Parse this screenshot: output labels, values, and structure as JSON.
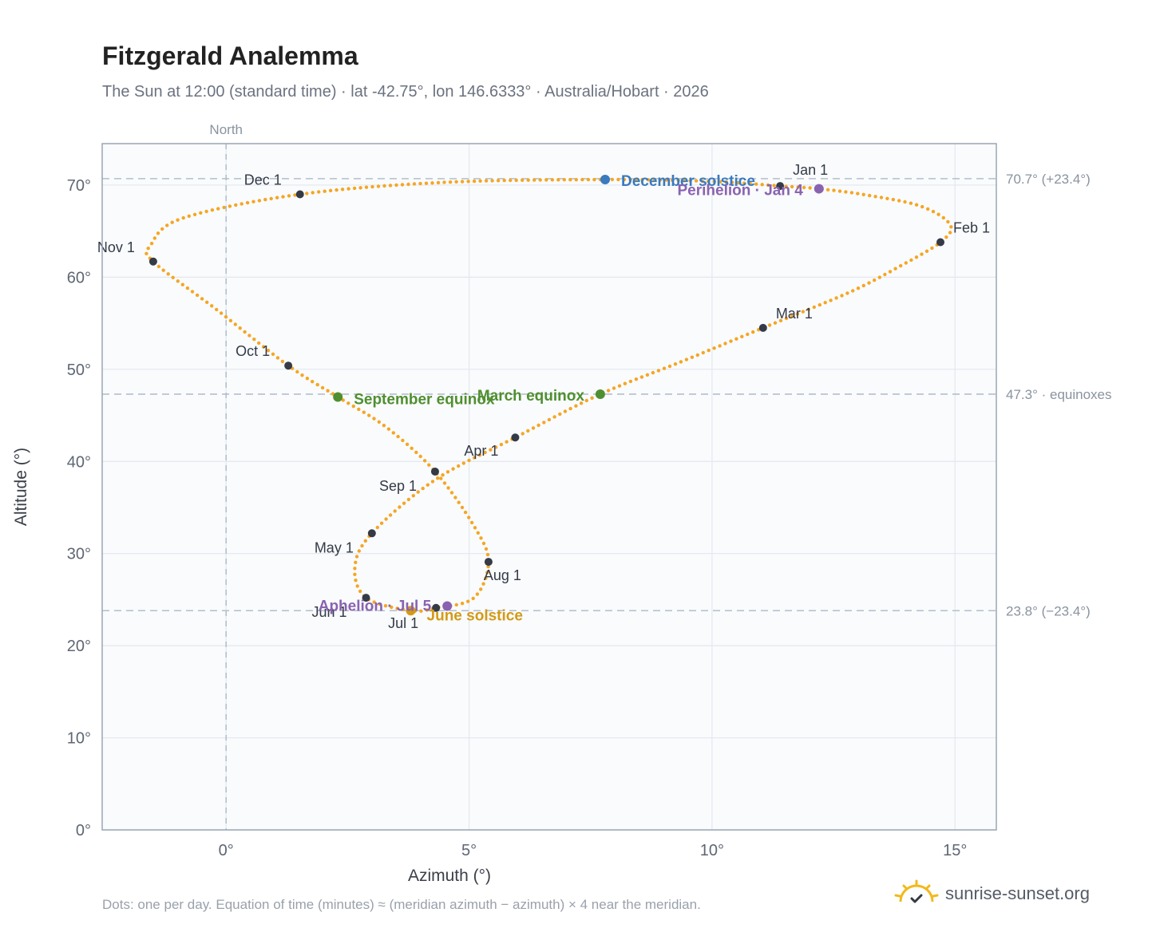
{
  "header": {
    "title": "Fitzgerald Analemma",
    "subtitle": "The Sun at 12:00 (standard time) · lat -42.75°, lon 146.6333° · Australia/Hobart · 2026"
  },
  "footer": {
    "note": "Dots: one per day. Equation of time (minutes) ≈ (meridian azimuth − azimuth) × 4 near the meridian.",
    "brand": "sunrise-sunset.org"
  },
  "colors": {
    "curve": "#f5a623",
    "month_marker": "#343a46",
    "december_solstice": "#3a7abf",
    "june_solstice": "#d49a15",
    "equinox": "#4f8f2f",
    "aphelion_perihelion": "#8a63b0",
    "reference_line": "#b4bfcc",
    "grid": "#e3e8ee",
    "plot_bg": "#f9fbfd",
    "frame": "#9aa6b4"
  },
  "chart_data": {
    "type": "scatter",
    "title": "Fitzgerald Analemma",
    "xlabel": "Azimuth (°)",
    "ylabel": "Altitude (°)",
    "xlim": [
      -2.55,
      15.85
    ],
    "ylim": [
      0,
      74.5
    ],
    "x_ticks": [
      0,
      5,
      10,
      15
    ],
    "x_tick_labels": [
      "0°",
      "5°",
      "10°",
      "15°"
    ],
    "y_ticks": [
      0,
      10,
      20,
      30,
      40,
      50,
      60,
      70
    ],
    "y_tick_labels": [
      "0°",
      "10°",
      "20°",
      "30°",
      "40°",
      "50°",
      "60°",
      "70°"
    ],
    "grid": true,
    "north_line": {
      "x": 0,
      "label": "North"
    },
    "reference_lines": [
      {
        "y": 70.7,
        "label": "70.7° (+23.4°)"
      },
      {
        "y": 47.3,
        "label": "47.3° · equinoxes"
      },
      {
        "y": 23.8,
        "label": "23.8° (−23.4°)"
      }
    ],
    "month_markers": [
      {
        "label": "Jan 1",
        "x": 11.4,
        "y": 69.9
      },
      {
        "label": "Feb 1",
        "x": 14.7,
        "y": 63.8
      },
      {
        "label": "Mar 1",
        "x": 11.05,
        "y": 54.5
      },
      {
        "label": "Apr 1",
        "x": 5.95,
        "y": 42.6
      },
      {
        "label": "May 1",
        "x": 3.0,
        "y": 32.2
      },
      {
        "label": "Jun 1",
        "x": 2.88,
        "y": 25.2
      },
      {
        "label": "Jul 1",
        "x": 4.32,
        "y": 24.1
      },
      {
        "label": "Aug 1",
        "x": 5.4,
        "y": 29.1
      },
      {
        "label": "Sep 1",
        "x": 4.3,
        "y": 38.9
      },
      {
        "label": "Oct 1",
        "x": 1.28,
        "y": 50.4
      },
      {
        "label": "Nov 1",
        "x": -1.5,
        "y": 61.7
      },
      {
        "label": "Dec 1",
        "x": 1.52,
        "y": 69.0
      }
    ],
    "events": [
      {
        "label": "December solstice",
        "x": 7.8,
        "y": 70.6,
        "color_key": "december_solstice"
      },
      {
        "label": "Perihelion · Jan 4",
        "x": 12.2,
        "y": 69.6,
        "color_key": "aphelion_perihelion"
      },
      {
        "label": "March equinox",
        "x": 7.7,
        "y": 47.3,
        "color_key": "equinox"
      },
      {
        "label": "September equinox",
        "x": 2.3,
        "y": 47.0,
        "color_key": "equinox"
      },
      {
        "label": "June solstice",
        "x": 3.8,
        "y": 23.8,
        "color_key": "june_solstice"
      },
      {
        "label": "Aphelion · Jul 5",
        "x": 4.55,
        "y": 24.3,
        "color_key": "aphelion_perihelion"
      }
    ],
    "curve_anchors": [
      {
        "x": 11.4,
        "y": 69.9
      },
      {
        "x": 12.2,
        "y": 69.6
      },
      {
        "x": 13.2,
        "y": 68.9
      },
      {
        "x": 14.3,
        "y": 67.7
      },
      {
        "x": 14.9,
        "y": 65.7
      },
      {
        "x": 14.7,
        "y": 63.8
      },
      {
        "x": 13.8,
        "y": 61.0
      },
      {
        "x": 12.8,
        "y": 58.3
      },
      {
        "x": 11.05,
        "y": 54.5
      },
      {
        "x": 9.4,
        "y": 50.9
      },
      {
        "x": 7.7,
        "y": 47.3
      },
      {
        "x": 5.95,
        "y": 42.6
      },
      {
        "x": 4.3,
        "y": 38.0
      },
      {
        "x": 3.0,
        "y": 32.2
      },
      {
        "x": 2.65,
        "y": 28.5
      },
      {
        "x": 2.88,
        "y": 25.2
      },
      {
        "x": 3.8,
        "y": 23.8
      },
      {
        "x": 4.32,
        "y": 24.1
      },
      {
        "x": 5.1,
        "y": 25.2
      },
      {
        "x": 5.4,
        "y": 29.1
      },
      {
        "x": 5.1,
        "y": 33.0
      },
      {
        "x": 4.3,
        "y": 38.9
      },
      {
        "x": 3.3,
        "y": 43.7
      },
      {
        "x": 2.3,
        "y": 47.0
      },
      {
        "x": 1.28,
        "y": 50.4
      },
      {
        "x": -0.2,
        "y": 56.5
      },
      {
        "x": -1.5,
        "y": 61.7
      },
      {
        "x": -1.55,
        "y": 63.5
      },
      {
        "x": -0.9,
        "y": 66.4
      },
      {
        "x": 1.52,
        "y": 69.0
      },
      {
        "x": 4.5,
        "y": 70.3
      },
      {
        "x": 7.8,
        "y": 70.6
      },
      {
        "x": 10.0,
        "y": 70.4
      },
      {
        "x": 11.4,
        "y": 69.9
      }
    ]
  }
}
